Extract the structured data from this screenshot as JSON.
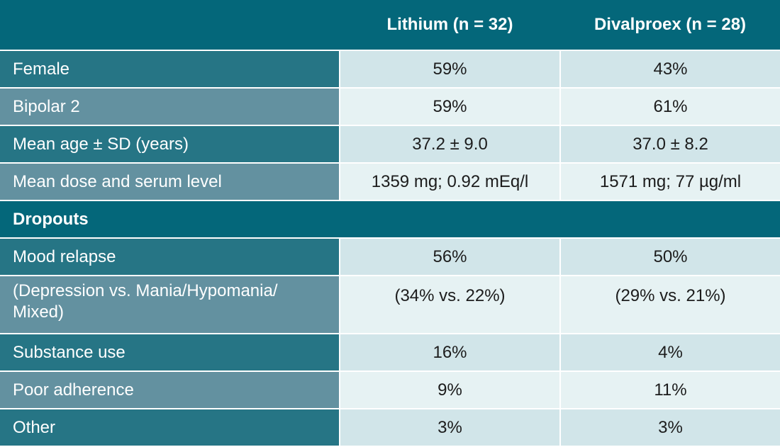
{
  "table": {
    "headers": [
      "",
      "Lithium (n = 32)",
      "Divalproex (n = 28)"
    ],
    "rows": [
      {
        "label": "Female",
        "lithium": "59%",
        "divalproex": "43%"
      },
      {
        "label": "Bipolar 2",
        "lithium": "59%",
        "divalproex": "61%"
      },
      {
        "label": "Mean age ± SD (years)",
        "lithium": "37.2 ± 9.0",
        "divalproex": "37.0 ± 8.2"
      },
      {
        "label": "Mean dose and serum level",
        "lithium": "1359 mg; 0.92 mEq/l",
        "divalproex": "1571 mg; 77 µg/ml"
      }
    ],
    "section": "Dropouts",
    "dropout_rows": [
      {
        "label": "Mood relapse",
        "lithium": "56%",
        "divalproex": "50%"
      },
      {
        "label": "(Depression vs. Mania/Hypomania/ Mixed)",
        "lithium": "(34% vs. 22%)",
        "divalproex": "(29% vs. 21%)"
      },
      {
        "label": "Substance use",
        "lithium": "16%",
        "divalproex": "4%"
      },
      {
        "label": "Poor adherence",
        "lithium": "9%",
        "divalproex": "11%"
      },
      {
        "label": "Other",
        "lithium": "3%",
        "divalproex": "3%"
      }
    ]
  }
}
